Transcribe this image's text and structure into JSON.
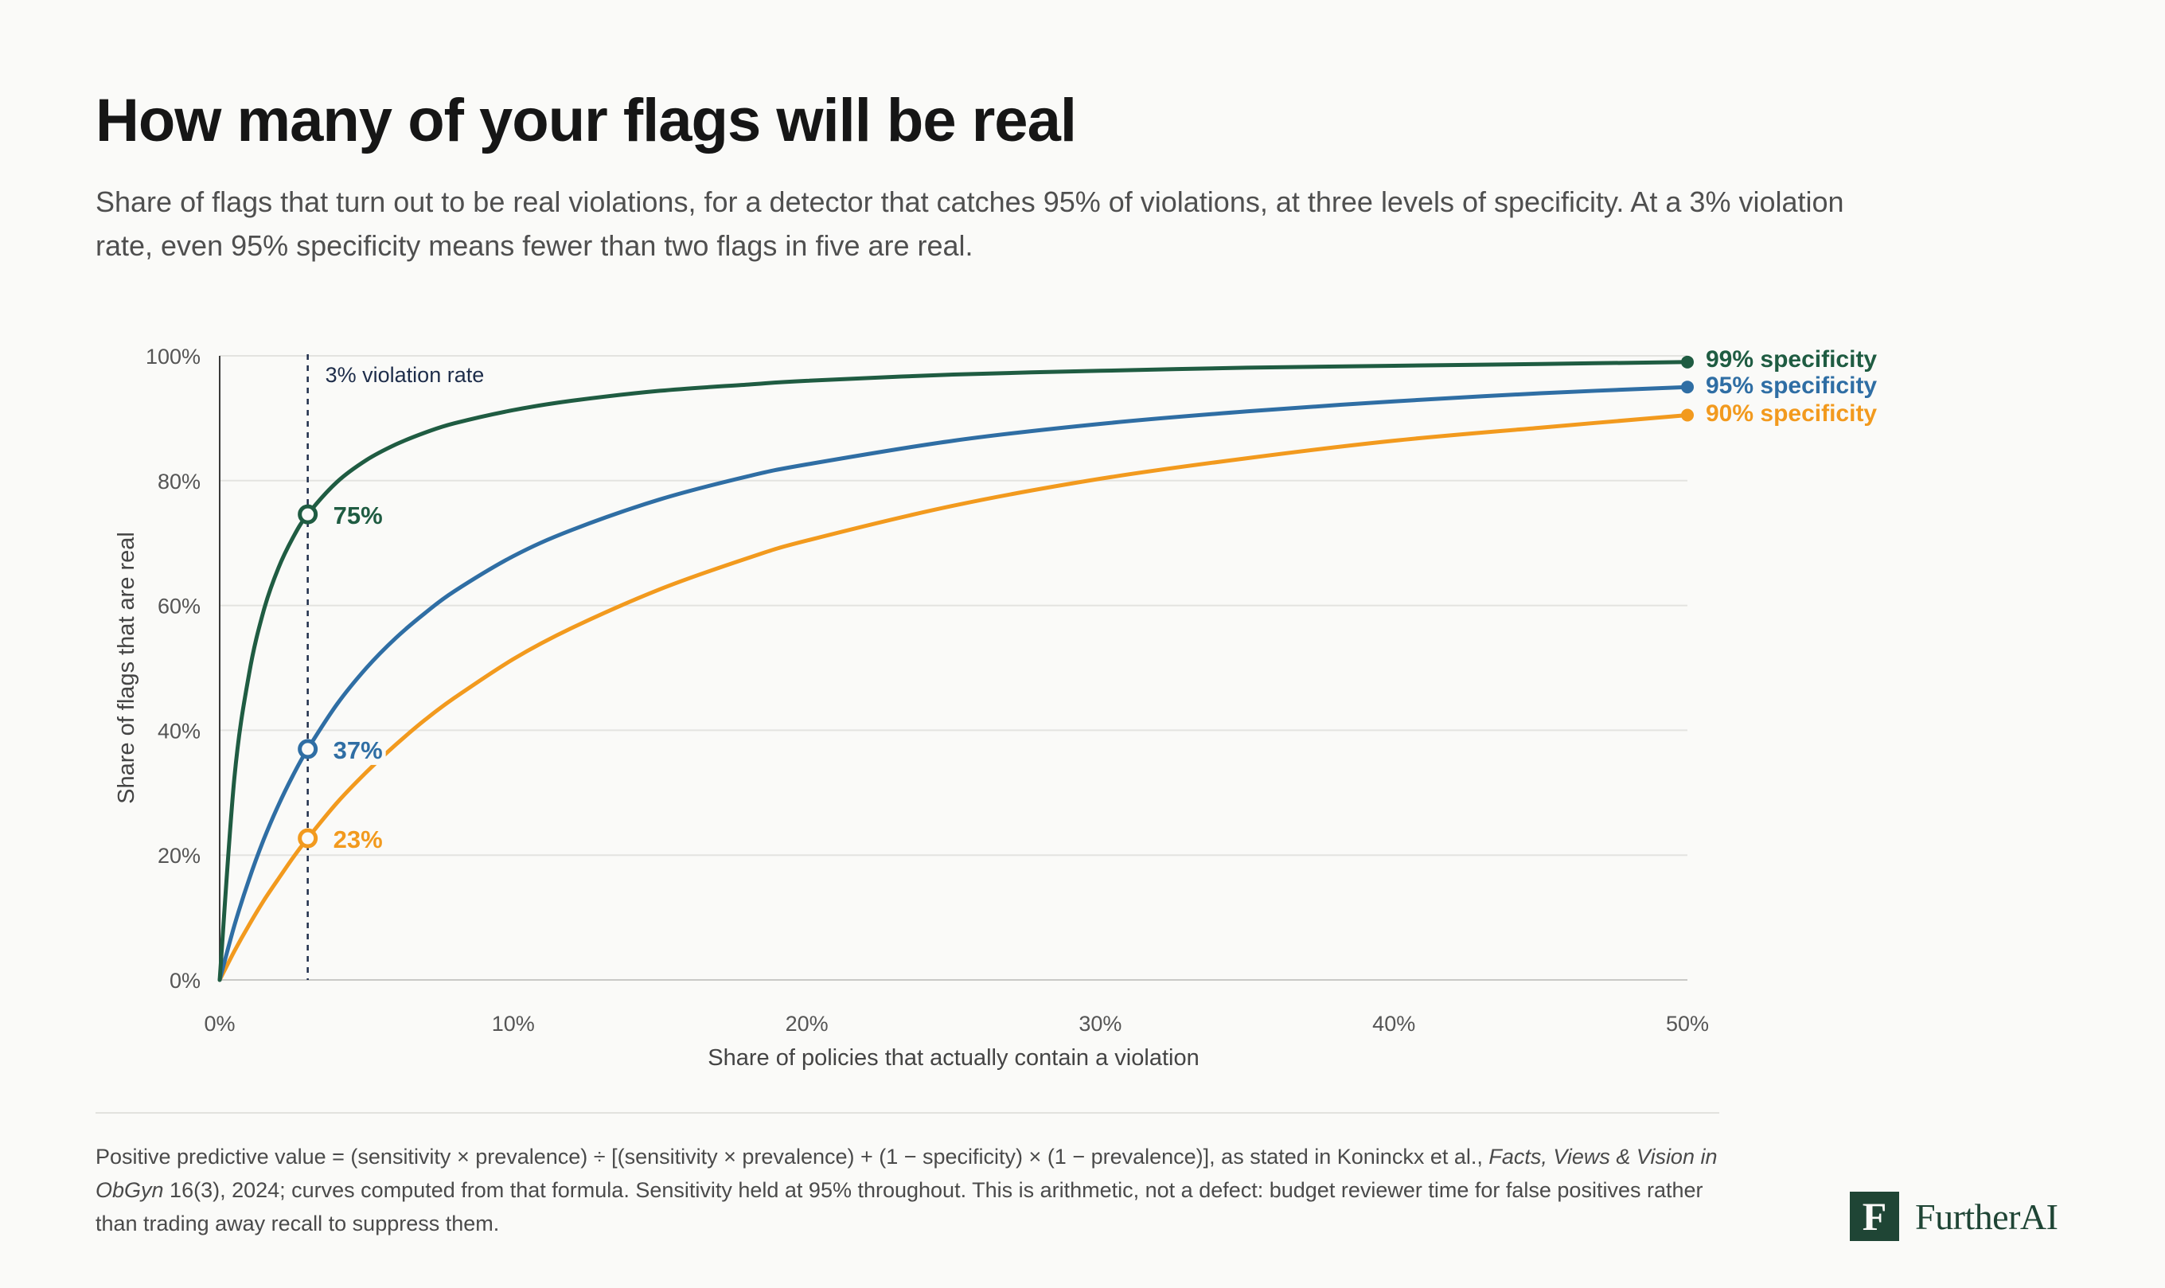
{
  "title": "How many of your flags will be real",
  "subtitle": "Share of flags that turn out to be real violations, for a detector that catches 95% of violations, at three levels of specificity. At a 3% violation rate, even 95% specificity means fewer than two flags in five are real.",
  "footnote": {
    "part1": "Positive predictive value = (sensitivity × prevalence) ÷ [(sensitivity × prevalence) + (1 − specificity) × (1 − prevalence)], as stated in Koninckx et al., ",
    "journal": "Facts, Views & Vision in ObGyn",
    "part2": " 16(3), 2024; curves computed from that formula. Sensitivity held at 95% throughout. This is arithmetic, not a defect: budget reviewer time for false positives rather than trading away recall to suppress them."
  },
  "logo": {
    "mark": "F",
    "text": "FurtherAI"
  },
  "chart_data": {
    "type": "line",
    "xlabel": "Share of policies that actually contain a violation",
    "ylabel": "Share of flags that are real",
    "xlim": [
      0,
      50
    ],
    "ylim": [
      0,
      100
    ],
    "x_ticks": [
      0,
      10,
      20,
      30,
      40,
      50
    ],
    "x_tick_labels": [
      "0%",
      "10%",
      "20%",
      "30%",
      "40%",
      "50%"
    ],
    "y_ticks": [
      0,
      20,
      40,
      60,
      80,
      100
    ],
    "y_tick_labels": [
      "0%",
      "20%",
      "40%",
      "60%",
      "80%",
      "100%"
    ],
    "grid": "horizontal",
    "sensitivity": 0.95,
    "x": [
      0,
      0.5,
      1,
      1.5,
      2,
      2.5,
      3,
      4,
      5,
      6,
      7,
      8,
      10,
      12,
      15,
      18,
      20,
      25,
      30,
      35,
      40,
      45,
      50
    ],
    "series": [
      {
        "name": "99% specificity",
        "color": "#1f5c42",
        "values": [
          0.0,
          32.3,
          49.0,
          59.2,
          66.0,
          70.9,
          74.6,
          79.8,
          83.3,
          85.8,
          87.7,
          89.2,
          91.3,
          92.8,
          94.4,
          95.4,
          96.0,
          97.0,
          97.6,
          98.1,
          98.4,
          98.7,
          99.0
        ]
      },
      {
        "name": "95% specificity",
        "color": "#2f6ea4",
        "values": [
          0.0,
          8.7,
          16.1,
          22.5,
          28.0,
          32.8,
          37.0,
          44.2,
          50.0,
          54.8,
          58.8,
          62.3,
          67.9,
          72.1,
          77.0,
          80.7,
          82.6,
          86.4,
          89.1,
          91.1,
          92.7,
          94.0,
          95.0
        ]
      },
      {
        "name": "90% specificity",
        "color": "#f29a1e",
        "values": [
          0.0,
          4.6,
          8.8,
          12.7,
          16.2,
          19.6,
          22.7,
          28.4,
          33.3,
          37.7,
          41.7,
          45.2,
          51.4,
          56.4,
          62.6,
          67.6,
          70.4,
          76.0,
          80.3,
          83.6,
          86.4,
          88.5,
          90.5
        ]
      }
    ],
    "reference_line": {
      "x": 3,
      "label": "3% violation rate",
      "color": "#1e2d4a"
    },
    "annotations": [
      {
        "x": 3,
        "y": 74.6,
        "label": "75%",
        "series": 0
      },
      {
        "x": 3,
        "y": 37.0,
        "label": "37%",
        "series": 1
      },
      {
        "x": 3,
        "y": 22.7,
        "label": "23%",
        "series": 2
      }
    ]
  }
}
